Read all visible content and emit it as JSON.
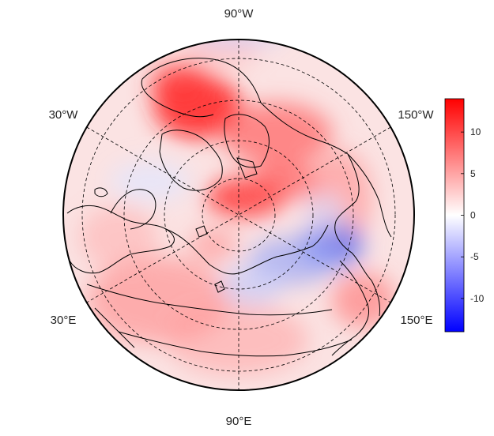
{
  "map": {
    "projection": "north-polar-stereographic",
    "longitude_labels": [
      "90°W",
      "30°W",
      "150°W",
      "30°E",
      "150°E",
      "90°E"
    ],
    "graticule_style": "dashed",
    "coastlines": true
  },
  "colorbar": {
    "ticks": [
      "10",
      "5",
      "0",
      "-5",
      "-10"
    ],
    "tick_values": [
      10,
      5,
      0,
      -5,
      -10
    ],
    "range": [
      -14,
      14
    ],
    "colors": {
      "high": "#ff0000",
      "mid": "#ffffff",
      "low": "#0000ff"
    }
  }
}
